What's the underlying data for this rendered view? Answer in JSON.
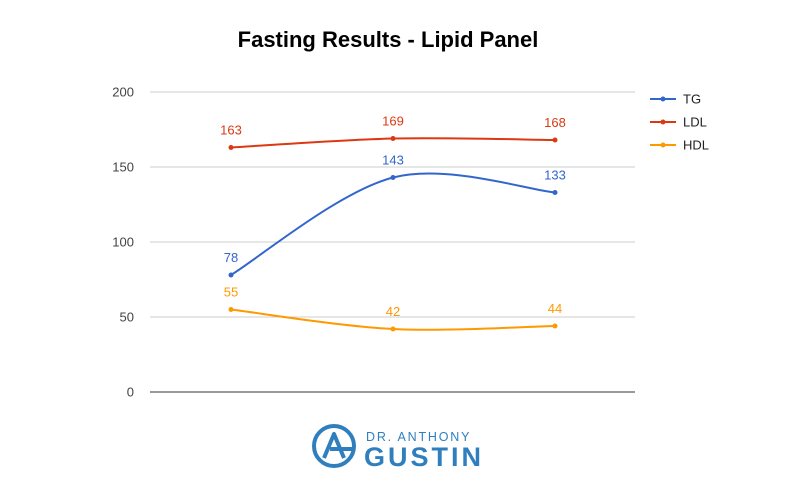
{
  "chart_data": {
    "type": "line",
    "title": "Fasting Results - Lipid Panel",
    "categories": [
      "",
      "",
      ""
    ],
    "ylim": [
      0,
      200
    ],
    "yticks": [
      0,
      50,
      100,
      150,
      200
    ],
    "grid": true,
    "legend_position": "right",
    "series": [
      {
        "name": "TG",
        "color": "#3366cc",
        "values": [
          78,
          143,
          133
        ]
      },
      {
        "name": "LDL",
        "color": "#dc3912",
        "values": [
          163,
          169,
          168
        ]
      },
      {
        "name": "HDL",
        "color": "#ff9900",
        "values": [
          55,
          42,
          44
        ]
      }
    ]
  },
  "logo": {
    "line1": "DR. ANTHONY",
    "line2": "GUSTIN",
    "color": "#2f7fbf"
  }
}
